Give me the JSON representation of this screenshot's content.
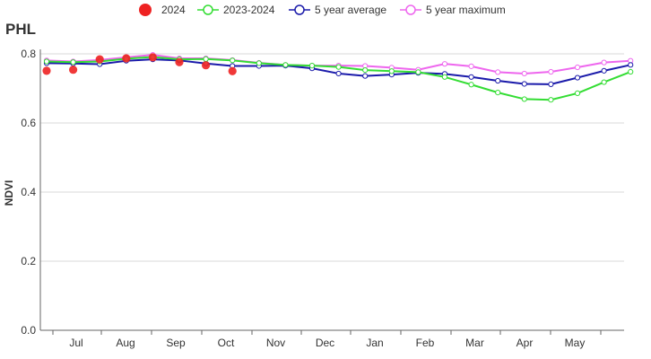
{
  "chart_data": {
    "type": "line",
    "title": "PHL",
    "ylabel": "NDVI",
    "xlabel": "",
    "ylim": [
      0,
      0.8
    ],
    "yticks": [
      0,
      0.2,
      0.4,
      0.6,
      0.8
    ],
    "grid": "horizontal",
    "legend_position": "top-center",
    "month_labels": [
      "Jul",
      "Aug",
      "Sep",
      "Oct",
      "Nov",
      "Dec",
      "Jan",
      "Feb",
      "Mar",
      "Apr",
      "May"
    ],
    "series": [
      {
        "name": "2024",
        "style": "dots",
        "color": "#ee2222",
        "values": [
          0.751,
          0.754,
          0.784,
          0.787,
          0.79,
          0.776,
          0.767,
          0.75
        ]
      },
      {
        "name": "2023-2024",
        "style": "line",
        "color": "#33dd33",
        "values": [
          0.778,
          0.776,
          0.778,
          0.786,
          0.791,
          0.784,
          0.785,
          0.781,
          0.773,
          0.768,
          0.766,
          0.762,
          0.753,
          0.75,
          0.747,
          0.733,
          0.711,
          0.688,
          0.669,
          0.667,
          0.686,
          0.718,
          0.748
        ]
      },
      {
        "name": "5 year average",
        "style": "line",
        "color": "#1a1aaa",
        "values": [
          0.773,
          0.772,
          0.77,
          0.78,
          0.784,
          0.781,
          0.772,
          0.765,
          0.765,
          0.766,
          0.758,
          0.743,
          0.736,
          0.74,
          0.745,
          0.742,
          0.733,
          0.722,
          0.713,
          0.712,
          0.731,
          0.751,
          0.768
        ]
      },
      {
        "name": "5 year maximum",
        "style": "line",
        "color": "#ee66ee",
        "values": [
          0.781,
          0.778,
          0.782,
          0.79,
          0.797,
          0.787,
          0.787,
          0.782,
          0.774,
          0.768,
          0.766,
          0.766,
          0.765,
          0.76,
          0.754,
          0.771,
          0.764,
          0.747,
          0.743,
          0.748,
          0.761,
          0.775,
          0.78
        ]
      }
    ]
  }
}
